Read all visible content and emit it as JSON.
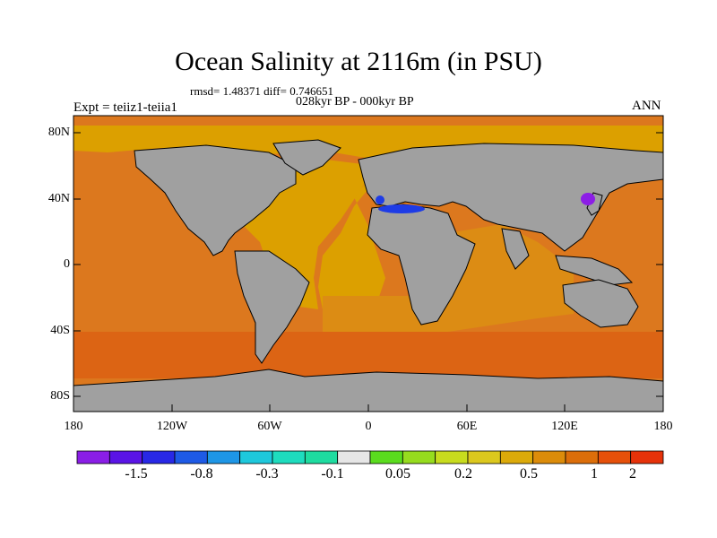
{
  "title": "Ocean Salinity at 2116m (in PSU)",
  "stats_line": "rmsd= 1.48371 diff= 0.746651",
  "period": "028kyr BP - 000kyr BP",
  "experiment": "Expt = teiiz1-teiia1",
  "season": "ANN",
  "lat_ticks": [
    "80N",
    "40N",
    "0",
    "40S",
    "80S"
  ],
  "lon_ticks": [
    "180",
    "120W",
    "60W",
    "0",
    "60E",
    "120E",
    "180"
  ],
  "colorbar": {
    "colors": [
      "#8a1ee6",
      "#5a14e6",
      "#2828e6",
      "#1e5ae6",
      "#1e96e6",
      "#1ec8dc",
      "#1edcbe",
      "#1edca0",
      "#e6e6e6",
      "#5adc1e",
      "#96dc1e",
      "#c8dc1e",
      "#dcc81e",
      "#dcaa0a",
      "#dc8c0a",
      "#dc6e0a",
      "#e6500a",
      "#e6320a"
    ],
    "labels": [
      "-1.5",
      "-0.8",
      "-0.3",
      "-0.1",
      "0.05",
      "0.2",
      "0.5",
      "1",
      "2"
    ]
  },
  "map_colors": {
    "land": "#a0a0a0",
    "arctic_atlantic": "#dca000",
    "indian_south_atlantic": "#dc8c14",
    "pacific": "#dc781e",
    "southern_ocean": "#dc6414",
    "mediterranean": "#1e3ce6",
    "japan_sea": "#8c1ee6"
  }
}
